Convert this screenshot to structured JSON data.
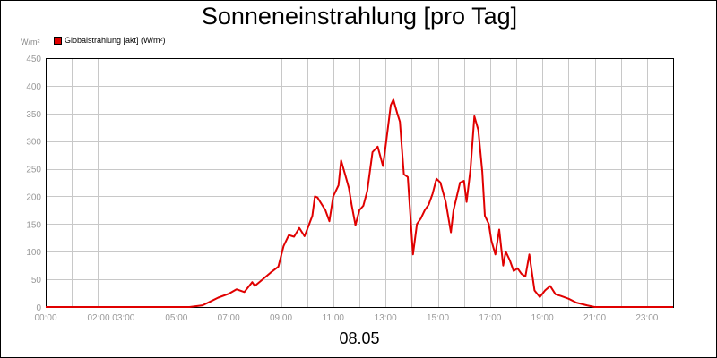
{
  "chart_data": {
    "type": "line",
    "title": "Sonneneinstrahlung [pro Tag]",
    "ylabel": "W/m²",
    "xlabel": "08.05",
    "ylim": [
      0,
      450
    ],
    "xlim": [
      0,
      24
    ],
    "yticks": [
      "0",
      "50",
      "100",
      "150",
      "200",
      "250",
      "300",
      "350",
      "400",
      "450"
    ],
    "xticks": [
      {
        "x": 0,
        "label": "00:00"
      },
      {
        "x": 2.5,
        "label": "02:00 03:00"
      },
      {
        "x": 5,
        "label": "05:00"
      },
      {
        "x": 7,
        "label": "07:00"
      },
      {
        "x": 9,
        "label": "09:00"
      },
      {
        "x": 11,
        "label": "11:00"
      },
      {
        "x": 13,
        "label": "13:00"
      },
      {
        "x": 15,
        "label": "15:00"
      },
      {
        "x": 17,
        "label": "17:00"
      },
      {
        "x": 19,
        "label": "19:00"
      },
      {
        "x": 21,
        "label": "21:00"
      },
      {
        "x": 23,
        "label": "23:00"
      }
    ],
    "grid": true,
    "legend_position": "top-left",
    "series": [
      {
        "name": "Globalstrahlung [akt] (W/m²)",
        "color": "#e00000",
        "x": [
          0,
          5.5,
          6.0,
          6.3,
          6.6,
          7.0,
          7.3,
          7.6,
          7.9,
          8.0,
          8.3,
          8.6,
          8.9,
          9.1,
          9.3,
          9.5,
          9.7,
          9.9,
          10.0,
          10.2,
          10.3,
          10.4,
          10.5,
          10.7,
          10.85,
          11.0,
          11.2,
          11.3,
          11.5,
          11.6,
          11.7,
          11.85,
          12.0,
          12.15,
          12.3,
          12.5,
          12.7,
          12.9,
          13.0,
          13.2,
          13.3,
          13.45,
          13.55,
          13.7,
          13.85,
          14.05,
          14.2,
          14.35,
          14.5,
          14.65,
          14.8,
          14.95,
          15.1,
          15.3,
          15.5,
          15.6,
          15.75,
          15.85,
          16.0,
          16.1,
          16.25,
          16.4,
          16.55,
          16.7,
          16.8,
          16.95,
          17.05,
          17.2,
          17.35,
          17.5,
          17.6,
          17.75,
          17.9,
          18.05,
          18.2,
          18.35,
          18.5,
          18.7,
          18.9,
          19.1,
          19.3,
          19.5,
          19.7,
          20.0,
          20.3,
          20.7,
          21.0,
          24.0
        ],
        "values": [
          0,
          0,
          3,
          10,
          17,
          24,
          32,
          27,
          45,
          38,
          50,
          62,
          73,
          110,
          130,
          127,
          143,
          128,
          140,
          165,
          200,
          198,
          190,
          175,
          155,
          200,
          220,
          265,
          232,
          215,
          185,
          148,
          175,
          183,
          210,
          280,
          290,
          255,
          290,
          365,
          375,
          350,
          335,
          240,
          235,
          95,
          150,
          160,
          175,
          185,
          205,
          232,
          225,
          190,
          135,
          175,
          205,
          225,
          228,
          190,
          250,
          345,
          320,
          245,
          165,
          150,
          120,
          95,
          140,
          75,
          100,
          85,
          65,
          70,
          60,
          55,
          95,
          30,
          18,
          30,
          38,
          23,
          20,
          15,
          8,
          3,
          0,
          0
        ]
      }
    ]
  }
}
